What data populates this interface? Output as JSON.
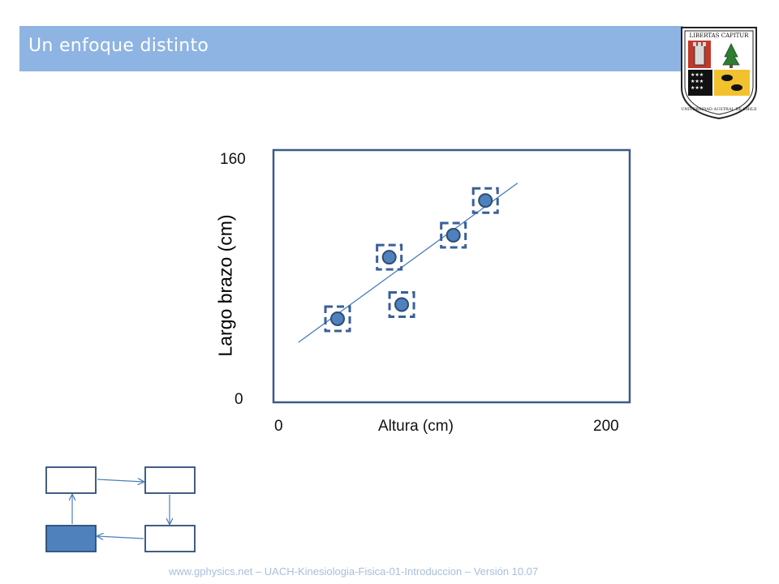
{
  "slide": {
    "title": "Un enfoque distinto",
    "crest_motto": "LIBERTAS CAPITUR",
    "crest_name": "UNIVERSIDAD AUSTRAL DE CHILE",
    "footer": "www.gphysics.net – UACH-Kinesiologia-Fisica-01-Introduccion – Versión 10.07"
  },
  "cycle_diagram": {
    "boxes": 4,
    "highlighted_box": "bottom-left",
    "highlight_color": "#4f81bd",
    "arrows": "clockwise"
  },
  "chart_data": {
    "type": "scatter",
    "title": "",
    "xlabel": "Altura (cm)",
    "ylabel": "Largo brazo (cm)",
    "xlim": [
      0,
      200
    ],
    "ylim": [
      0,
      160
    ],
    "x_tick_labels": [
      "0",
      "200"
    ],
    "y_tick_labels": [
      "0",
      "160"
    ],
    "grid": false,
    "legend": "none",
    "points": [
      {
        "x": 36,
        "y": 53
      },
      {
        "x": 65,
        "y": 92
      },
      {
        "x": 72,
        "y": 62
      },
      {
        "x": 101,
        "y": 106
      },
      {
        "x": 119,
        "y": 128
      }
    ],
    "trendline": {
      "x": [
        14,
        137
      ],
      "y": [
        38,
        139
      ]
    },
    "point_markers": "dashed-box",
    "colors": {
      "point_fill": "#4f81bd",
      "point_stroke": "#2c4d75",
      "trend": "#4a7ebb",
      "box_dash": "#3a5f9a",
      "frame": "#3b5a8a"
    }
  }
}
